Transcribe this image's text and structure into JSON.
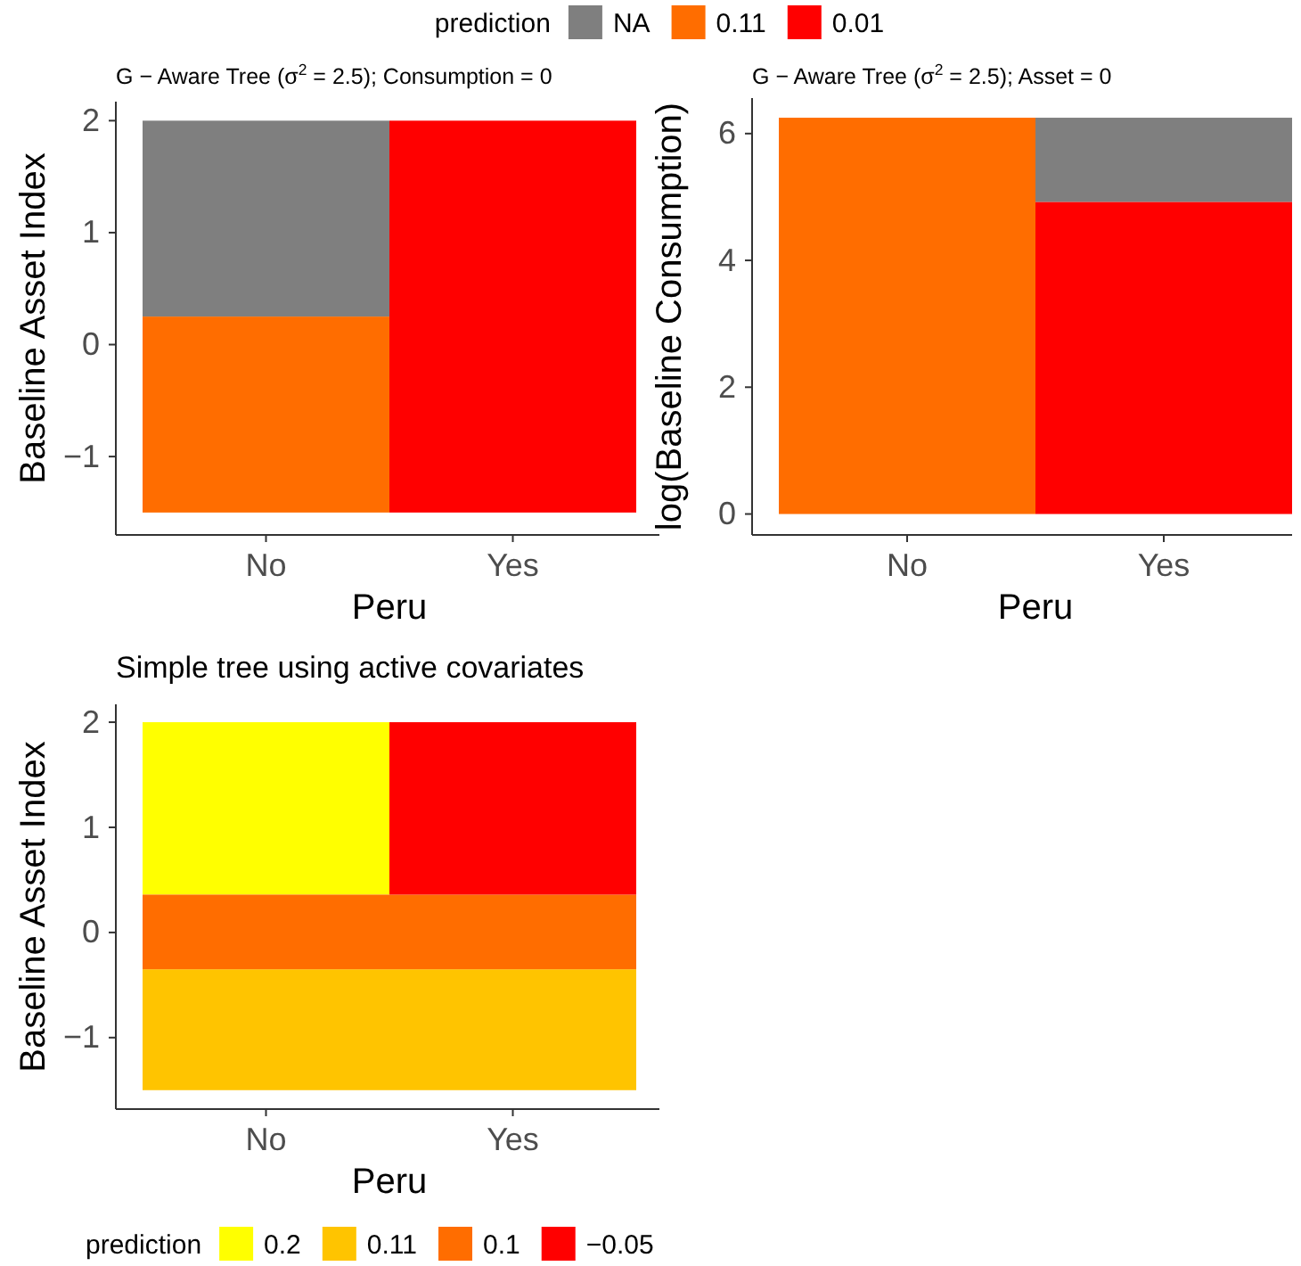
{
  "chart_data": [
    {
      "type": "bar",
      "title": "G − Aware Tree (σ$^{2}$ = 2.5); Consumption = 0",
      "xlabel": "Peru",
      "ylabel": "Baseline Asset Index",
      "legend_title": "prediction",
      "legend": "top",
      "categories": [
        "No",
        "Yes"
      ],
      "ylim": [
        -1.7,
        2.17
      ],
      "yticks": [
        {
          "value": -1,
          "label": "−1"
        },
        0,
        1,
        2
      ],
      "series": [
        {
          "name": "NA",
          "color": "#7f7f7f",
          "base": [
            0.25,
            null
          ],
          "values": [
            1.75,
            null
          ]
        },
        {
          "name": "0.11",
          "color": "#ff6d00",
          "base": [
            -1.5,
            null
          ],
          "values": [
            1.75,
            null
          ]
        },
        {
          "name": "0.01",
          "color": "#ff0000",
          "base": [
            null,
            -1.5
          ],
          "values": [
            null,
            3.5
          ]
        }
      ]
    },
    {
      "type": "bar",
      "title": "G − Aware Tree (σ$^{2}$ = 2.5); Asset = 0",
      "xlabel": "Peru",
      "ylabel": "log(Baseline Consumption)",
      "categories": [
        "No",
        "Yes"
      ],
      "ylim": [
        -0.33,
        6.56
      ],
      "yticks": [
        0,
        2,
        4,
        6
      ],
      "series": [
        {
          "color": "#7f7f7f",
          "base": [
            null,
            4.92
          ],
          "values": [
            null,
            1.33
          ]
        },
        {
          "color": "#ff6d00",
          "base": [
            0,
            null
          ],
          "values": [
            6.25,
            null
          ]
        },
        {
          "color": "#ff0000",
          "base": [
            null,
            0
          ],
          "values": [
            null,
            4.92
          ]
        }
      ]
    },
    {
      "type": "bar",
      "title": "Simple tree using active covariates",
      "xlabel": "Peru",
      "ylabel": "Baseline Asset Index",
      "legend_title": "prediction",
      "legend": "bottom",
      "categories": [
        "No",
        "Yes"
      ],
      "ylim": [
        -1.68,
        2.17
      ],
      "yticks": [
        {
          "value": -1,
          "label": "−1"
        },
        0,
        1,
        2
      ],
      "series": [
        {
          "name": "0.2",
          "color": "#ffff00",
          "base": [
            0.36,
            null
          ],
          "values": [
            1.64,
            null
          ]
        },
        {
          "name": "0.11",
          "color": "#ffc400",
          "base": [
            -1.5,
            -1.5
          ],
          "values": [
            1.15,
            1.15
          ]
        },
        {
          "name": "0.1",
          "color": "#ff6d00",
          "base": [
            -0.35,
            -0.35
          ],
          "values": [
            0.71,
            0.71
          ]
        },
        {
          "name": "−0.05",
          "color": "#ff0000",
          "base": [
            null,
            0.36
          ],
          "values": [
            null,
            1.64
          ]
        }
      ]
    }
  ]
}
